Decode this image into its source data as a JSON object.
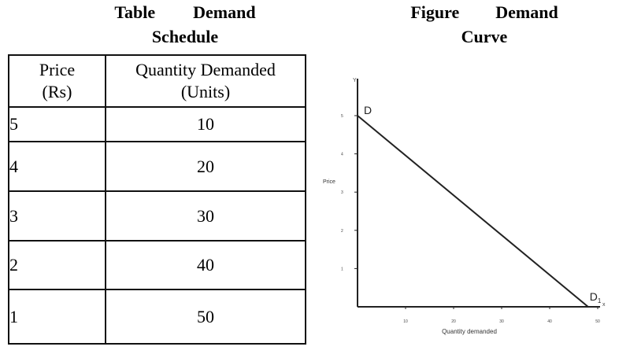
{
  "table": {
    "title_line1_a": "Table",
    "title_line1_b": "Demand",
    "title_line2": "Schedule",
    "headers": {
      "price_line1": "Price",
      "price_line2": "(Rs)",
      "qty_line1": "Quantity Demanded",
      "qty_line2": "(Units)"
    },
    "rows": [
      {
        "price": "5",
        "qty": "10"
      },
      {
        "price": "4",
        "qty": "20"
      },
      {
        "price": "3",
        "qty": "30"
      },
      {
        "price": "2",
        "qty": "40"
      },
      {
        "price": "1",
        "qty": "50"
      }
    ]
  },
  "figure": {
    "title_line1_a": "Figure",
    "title_line1_b": "Demand",
    "title_line2": "Curve"
  },
  "chart_data": {
    "type": "line",
    "title": "Figure Demand Curve",
    "xlabel": "Quantity demanded",
    "ylabel": "Price",
    "x_axis_letter": "x",
    "y_axis_letter": "Y",
    "xlim": [
      0,
      50
    ],
    "ylim": [
      0,
      5
    ],
    "x_ticks": [
      10,
      20,
      30,
      40,
      50
    ],
    "y_ticks": [
      1,
      2,
      3,
      4,
      5
    ],
    "grid": false,
    "series": [
      {
        "values": [
          [
            0,
            5
          ],
          [
            48,
            0
          ]
        ],
        "color": "#222222"
      }
    ],
    "point_labels": [
      {
        "text": "D",
        "x": 0,
        "y": 5
      },
      {
        "text": "D1",
        "x": 48,
        "y": 0
      }
    ]
  }
}
